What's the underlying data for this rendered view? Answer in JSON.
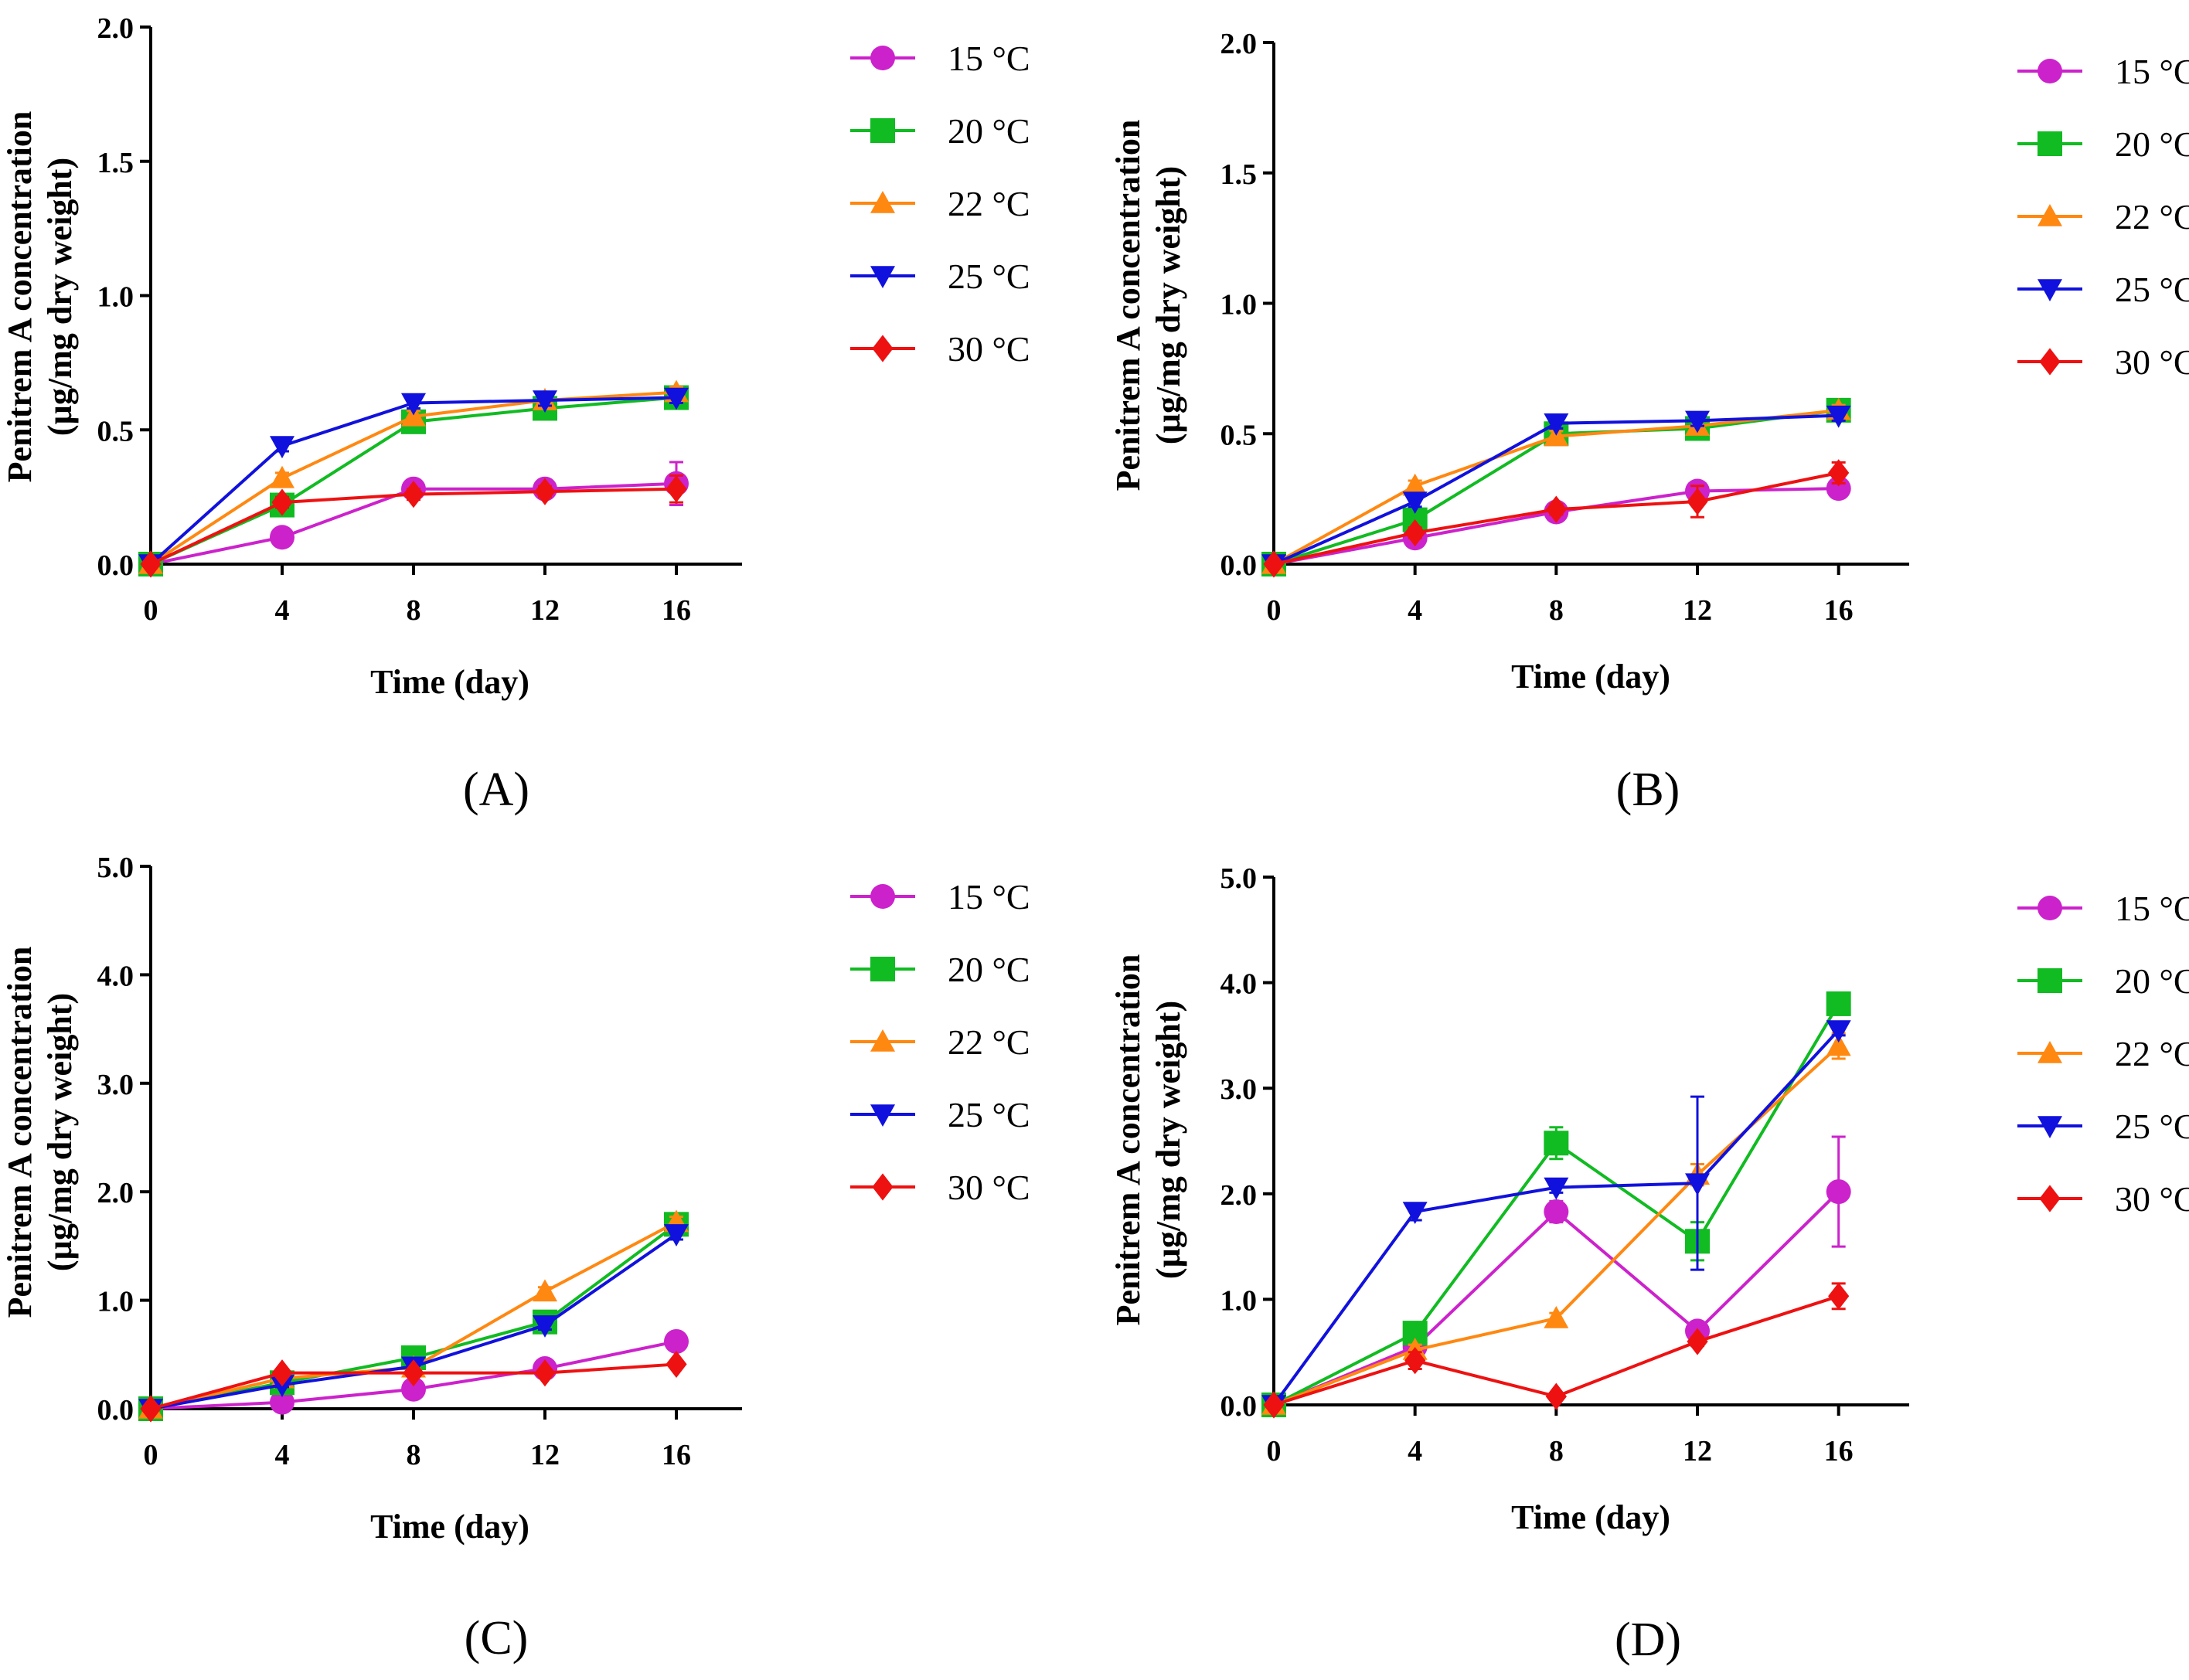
{
  "panels_labels": [
    "(A)",
    "(B)",
    "(C)",
    "(D)"
  ],
  "legend": [
    "15 °C",
    "20 °C",
    "22 °C",
    "25 °C",
    "30 °C"
  ],
  "series_colors": [
    "#cc22cc",
    "#11bb22",
    "#ff8811",
    "#1111dd",
    "#ee1111"
  ],
  "series_markers": [
    "circle",
    "square",
    "triangle-up",
    "triangle-down",
    "diamond"
  ],
  "chart_data": [
    {
      "type": "line",
      "label": "(A)",
      "xlabel": "Time (day)",
      "ylabel_line1": "Penitrem A concentration",
      "ylabel_line2": "(µg/mg dry weight)",
      "x": [
        0,
        4,
        8,
        12,
        16
      ],
      "xticks": [
        "0",
        "4",
        "8",
        "12",
        "16"
      ],
      "ylim": [
        0,
        2.0
      ],
      "yticks": [
        "0.0",
        "0.5",
        "1.0",
        "1.5",
        "2.0"
      ],
      "series": [
        {
          "name": "15 °C",
          "values": [
            0,
            0.1,
            0.28,
            0.28,
            0.3
          ],
          "errors": [
            0,
            0.02,
            0.02,
            0.02,
            0.08
          ]
        },
        {
          "name": "20 °C",
          "values": [
            0,
            0.22,
            0.53,
            0.58,
            0.62
          ],
          "errors": [
            0,
            0.02,
            0.02,
            0.02,
            0.02
          ]
        },
        {
          "name": "22 °C",
          "values": [
            0,
            0.32,
            0.55,
            0.61,
            0.64
          ],
          "errors": [
            0,
            0.02,
            0.02,
            0.02,
            0.02
          ]
        },
        {
          "name": "25 °C",
          "values": [
            0,
            0.44,
            0.6,
            0.61,
            0.62
          ],
          "errors": [
            0,
            0.02,
            0.02,
            0.02,
            0.02
          ]
        },
        {
          "name": "30 °C",
          "values": [
            0,
            0.23,
            0.26,
            0.27,
            0.28
          ],
          "errors": [
            0,
            0.02,
            0.02,
            0.02,
            0.05
          ]
        }
      ]
    },
    {
      "type": "line",
      "label": "(B)",
      "xlabel": "Time (day)",
      "ylabel_line1": "Penitrem A concentration",
      "ylabel_line2": "(µg/mg dry weight)",
      "x": [
        0,
        4,
        8,
        12,
        16
      ],
      "xticks": [
        "0",
        "4",
        "8",
        "12",
        "16"
      ],
      "ylim": [
        0,
        2.0
      ],
      "yticks": [
        "0.0",
        "0.5",
        "1.0",
        "1.5",
        "2.0"
      ],
      "series": [
        {
          "name": "15 °C",
          "values": [
            0,
            0.1,
            0.2,
            0.28,
            0.29
          ],
          "errors": [
            0,
            0.02,
            0.02,
            0.02,
            0.02
          ]
        },
        {
          "name": "20 °C",
          "values": [
            0,
            0.17,
            0.5,
            0.52,
            0.59
          ],
          "errors": [
            0,
            0.02,
            0.02,
            0.02,
            0.02
          ]
        },
        {
          "name": "22 °C",
          "values": [
            0,
            0.3,
            0.49,
            0.53,
            0.59
          ],
          "errors": [
            0,
            0.02,
            0.02,
            0.02,
            0.02
          ]
        },
        {
          "name": "25 °C",
          "values": [
            0,
            0.24,
            0.54,
            0.55,
            0.57
          ],
          "errors": [
            0,
            0.02,
            0.02,
            0.02,
            0.02
          ]
        },
        {
          "name": "30 °C",
          "values": [
            0,
            0.12,
            0.21,
            0.24,
            0.35
          ],
          "errors": [
            0,
            0.02,
            0.02,
            0.06,
            0.04
          ]
        }
      ]
    },
    {
      "type": "line",
      "label": "(C)",
      "xlabel": "Time (day)",
      "ylabel_line1": "Penitrem A concentration",
      "ylabel_line2": "(µg/mg dry weight)",
      "x": [
        0,
        4,
        8,
        12,
        16
      ],
      "xticks": [
        "0",
        "4",
        "8",
        "12",
        "16"
      ],
      "ylim": [
        0,
        5.0
      ],
      "yticks": [
        "0.0",
        "1.0",
        "2.0",
        "3.0",
        "4.0",
        "5.0"
      ],
      "series": [
        {
          "name": "15 °C",
          "values": [
            0,
            0.06,
            0.18,
            0.37,
            0.62
          ],
          "errors": [
            0,
            0.02,
            0.03,
            0.03,
            0.04
          ]
        },
        {
          "name": "20 °C",
          "values": [
            0,
            0.24,
            0.47,
            0.8,
            1.7
          ],
          "errors": [
            0,
            0.02,
            0.03,
            0.04,
            0.05
          ]
        },
        {
          "name": "22 °C",
          "values": [
            0,
            0.28,
            0.38,
            1.08,
            1.72
          ],
          "errors": [
            0,
            0.02,
            0.03,
            0.04,
            0.05
          ]
        },
        {
          "name": "25 °C",
          "values": [
            0,
            0.22,
            0.39,
            0.77,
            1.61
          ],
          "errors": [
            0,
            0.02,
            0.03,
            0.04,
            0.05
          ]
        },
        {
          "name": "30 °C",
          "values": [
            0,
            0.33,
            0.33,
            0.33,
            0.41
          ],
          "errors": [
            0,
            0.02,
            0.02,
            0.02,
            0.03
          ]
        }
      ]
    },
    {
      "type": "line",
      "label": "(D)",
      "xlabel": "Time (day)",
      "ylabel_line1": "Penitrem A concentration",
      "ylabel_line2": "(µg/mg dry weight)",
      "x": [
        0,
        4,
        8,
        12,
        16
      ],
      "xticks": [
        "0",
        "4",
        "8",
        "12",
        "16"
      ],
      "ylim": [
        0,
        5.0
      ],
      "yticks": [
        "0.0",
        "1.0",
        "2.0",
        "3.0",
        "4.0",
        "5.0"
      ],
      "series": [
        {
          "name": "15 °C",
          "values": [
            0,
            0.55,
            1.83,
            0.7,
            2.02
          ],
          "errors": [
            0,
            0.05,
            0.1,
            0.05,
            0.52
          ]
        },
        {
          "name": "20 °C",
          "values": [
            0,
            0.68,
            2.48,
            1.55,
            3.8
          ],
          "errors": [
            0,
            0.05,
            0.15,
            0.18,
            0.05
          ]
        },
        {
          "name": "22 °C",
          "values": [
            0,
            0.52,
            0.82,
            2.18,
            3.4
          ],
          "errors": [
            0,
            0.05,
            0.05,
            0.1,
            0.12
          ]
        },
        {
          "name": "25 °C",
          "values": [
            0,
            1.83,
            2.06,
            2.1,
            3.55
          ],
          "errors": [
            0,
            0.08,
            0.05,
            0.82,
            0.05
          ]
        },
        {
          "name": "30 °C",
          "values": [
            0,
            0.42,
            0.08,
            0.6,
            1.03
          ],
          "errors": [
            0,
            0.08,
            0.02,
            0.04,
            0.12
          ]
        }
      ]
    }
  ]
}
